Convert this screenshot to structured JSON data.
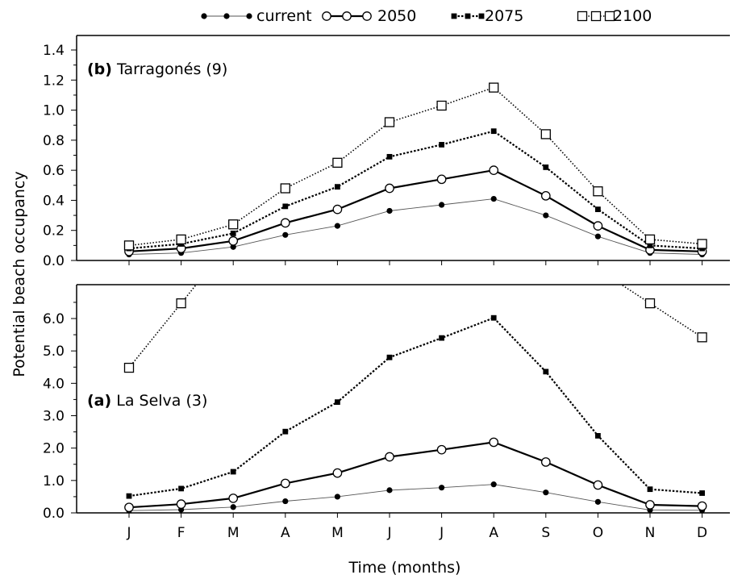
{
  "chart_data": [
    {
      "type": "line",
      "panel_letter": "(b)",
      "panel_name": "Tarragonés (9)",
      "categories": [
        "J",
        "F",
        "M",
        "A",
        "M",
        "J",
        "J",
        "A",
        "S",
        "O",
        "N",
        "D"
      ],
      "ylim": [
        0,
        1.4
      ],
      "yticks": [
        "0.0",
        "0.2",
        "0.4",
        "0.6",
        "0.8",
        "1.0",
        "1.2",
        "1.4"
      ],
      "series": [
        {
          "name": "current",
          "values": [
            0.04,
            0.05,
            0.09,
            0.17,
            0.23,
            0.33,
            0.37,
            0.41,
            0.3,
            0.16,
            0.05,
            0.04
          ]
        },
        {
          "name": "2050",
          "values": [
            0.06,
            0.08,
            0.13,
            0.25,
            0.34,
            0.48,
            0.54,
            0.6,
            0.43,
            0.23,
            0.07,
            0.06
          ]
        },
        {
          "name": "2075",
          "values": [
            0.08,
            0.11,
            0.18,
            0.36,
            0.49,
            0.69,
            0.77,
            0.86,
            0.62,
            0.34,
            0.1,
            0.08
          ]
        },
        {
          "name": "2100",
          "values": [
            0.1,
            0.14,
            0.24,
            0.48,
            0.65,
            0.92,
            1.03,
            1.15,
            0.84,
            0.46,
            0.14,
            0.11
          ]
        }
      ]
    },
    {
      "type": "line",
      "panel_letter": "(a)",
      "panel_name": "La Selva (3)",
      "categories": [
        "J",
        "F",
        "M",
        "A",
        "M",
        "J",
        "J",
        "A",
        "S",
        "O",
        "N",
        "D"
      ],
      "ylim": [
        0,
        7.0
      ],
      "yticks": [
        "0.0",
        "1.0",
        "2.0",
        "3.0",
        "4.0",
        "5.0",
        "6.0"
      ],
      "series": [
        {
          "name": "current",
          "values": [
            0.07,
            0.1,
            0.18,
            0.36,
            0.5,
            0.7,
            0.78,
            0.88,
            0.63,
            0.34,
            0.09,
            0.08
          ]
        },
        {
          "name": "2050",
          "values": [
            0.17,
            0.27,
            0.45,
            0.91,
            1.23,
            1.73,
            1.95,
            2.18,
            1.57,
            0.86,
            0.25,
            0.21
          ]
        },
        {
          "name": "2075",
          "values": [
            0.52,
            0.75,
            1.27,
            2.51,
            3.42,
            4.8,
            5.4,
            6.02,
            4.36,
            2.38,
            0.73,
            0.61
          ]
        },
        {
          "name": "2100",
          "values": [
            4.48,
            6.47,
            null,
            null,
            null,
            null,
            null,
            null,
            null,
            null,
            6.47,
            5.42
          ]
        }
      ]
    }
  ],
  "xlabel": "Time (months)",
  "ylabel": "Potential beach occupancy",
  "legend": [
    "current",
    "2050",
    "2075",
    "2100"
  ]
}
